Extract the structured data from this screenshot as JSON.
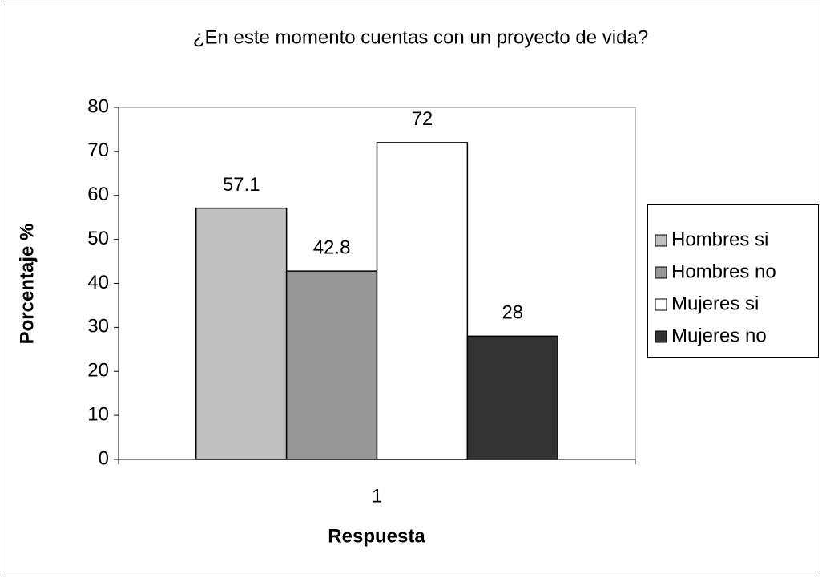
{
  "chart_data": {
    "type": "bar",
    "title": "¿En este momento cuentas con un proyecto de vida?",
    "xlabel": "Respuesta",
    "ylabel": "Porcentaje %",
    "categories": [
      "1"
    ],
    "series": [
      {
        "name": "Hombres si",
        "color": "#c0c0c0",
        "values": [
          57.1
        ]
      },
      {
        "name": "Hombres no",
        "color": "#969696",
        "values": [
          42.8
        ]
      },
      {
        "name": "Mujeres si",
        "color": "#ffffff",
        "values": [
          72
        ]
      },
      {
        "name": "Mujeres no",
        "color": "#333333",
        "values": [
          28
        ]
      }
    ],
    "ylim": [
      0,
      80
    ],
    "yticks": [
      0,
      10,
      20,
      30,
      40,
      50,
      60,
      70,
      80
    ],
    "grid": false,
    "legend": "right"
  }
}
